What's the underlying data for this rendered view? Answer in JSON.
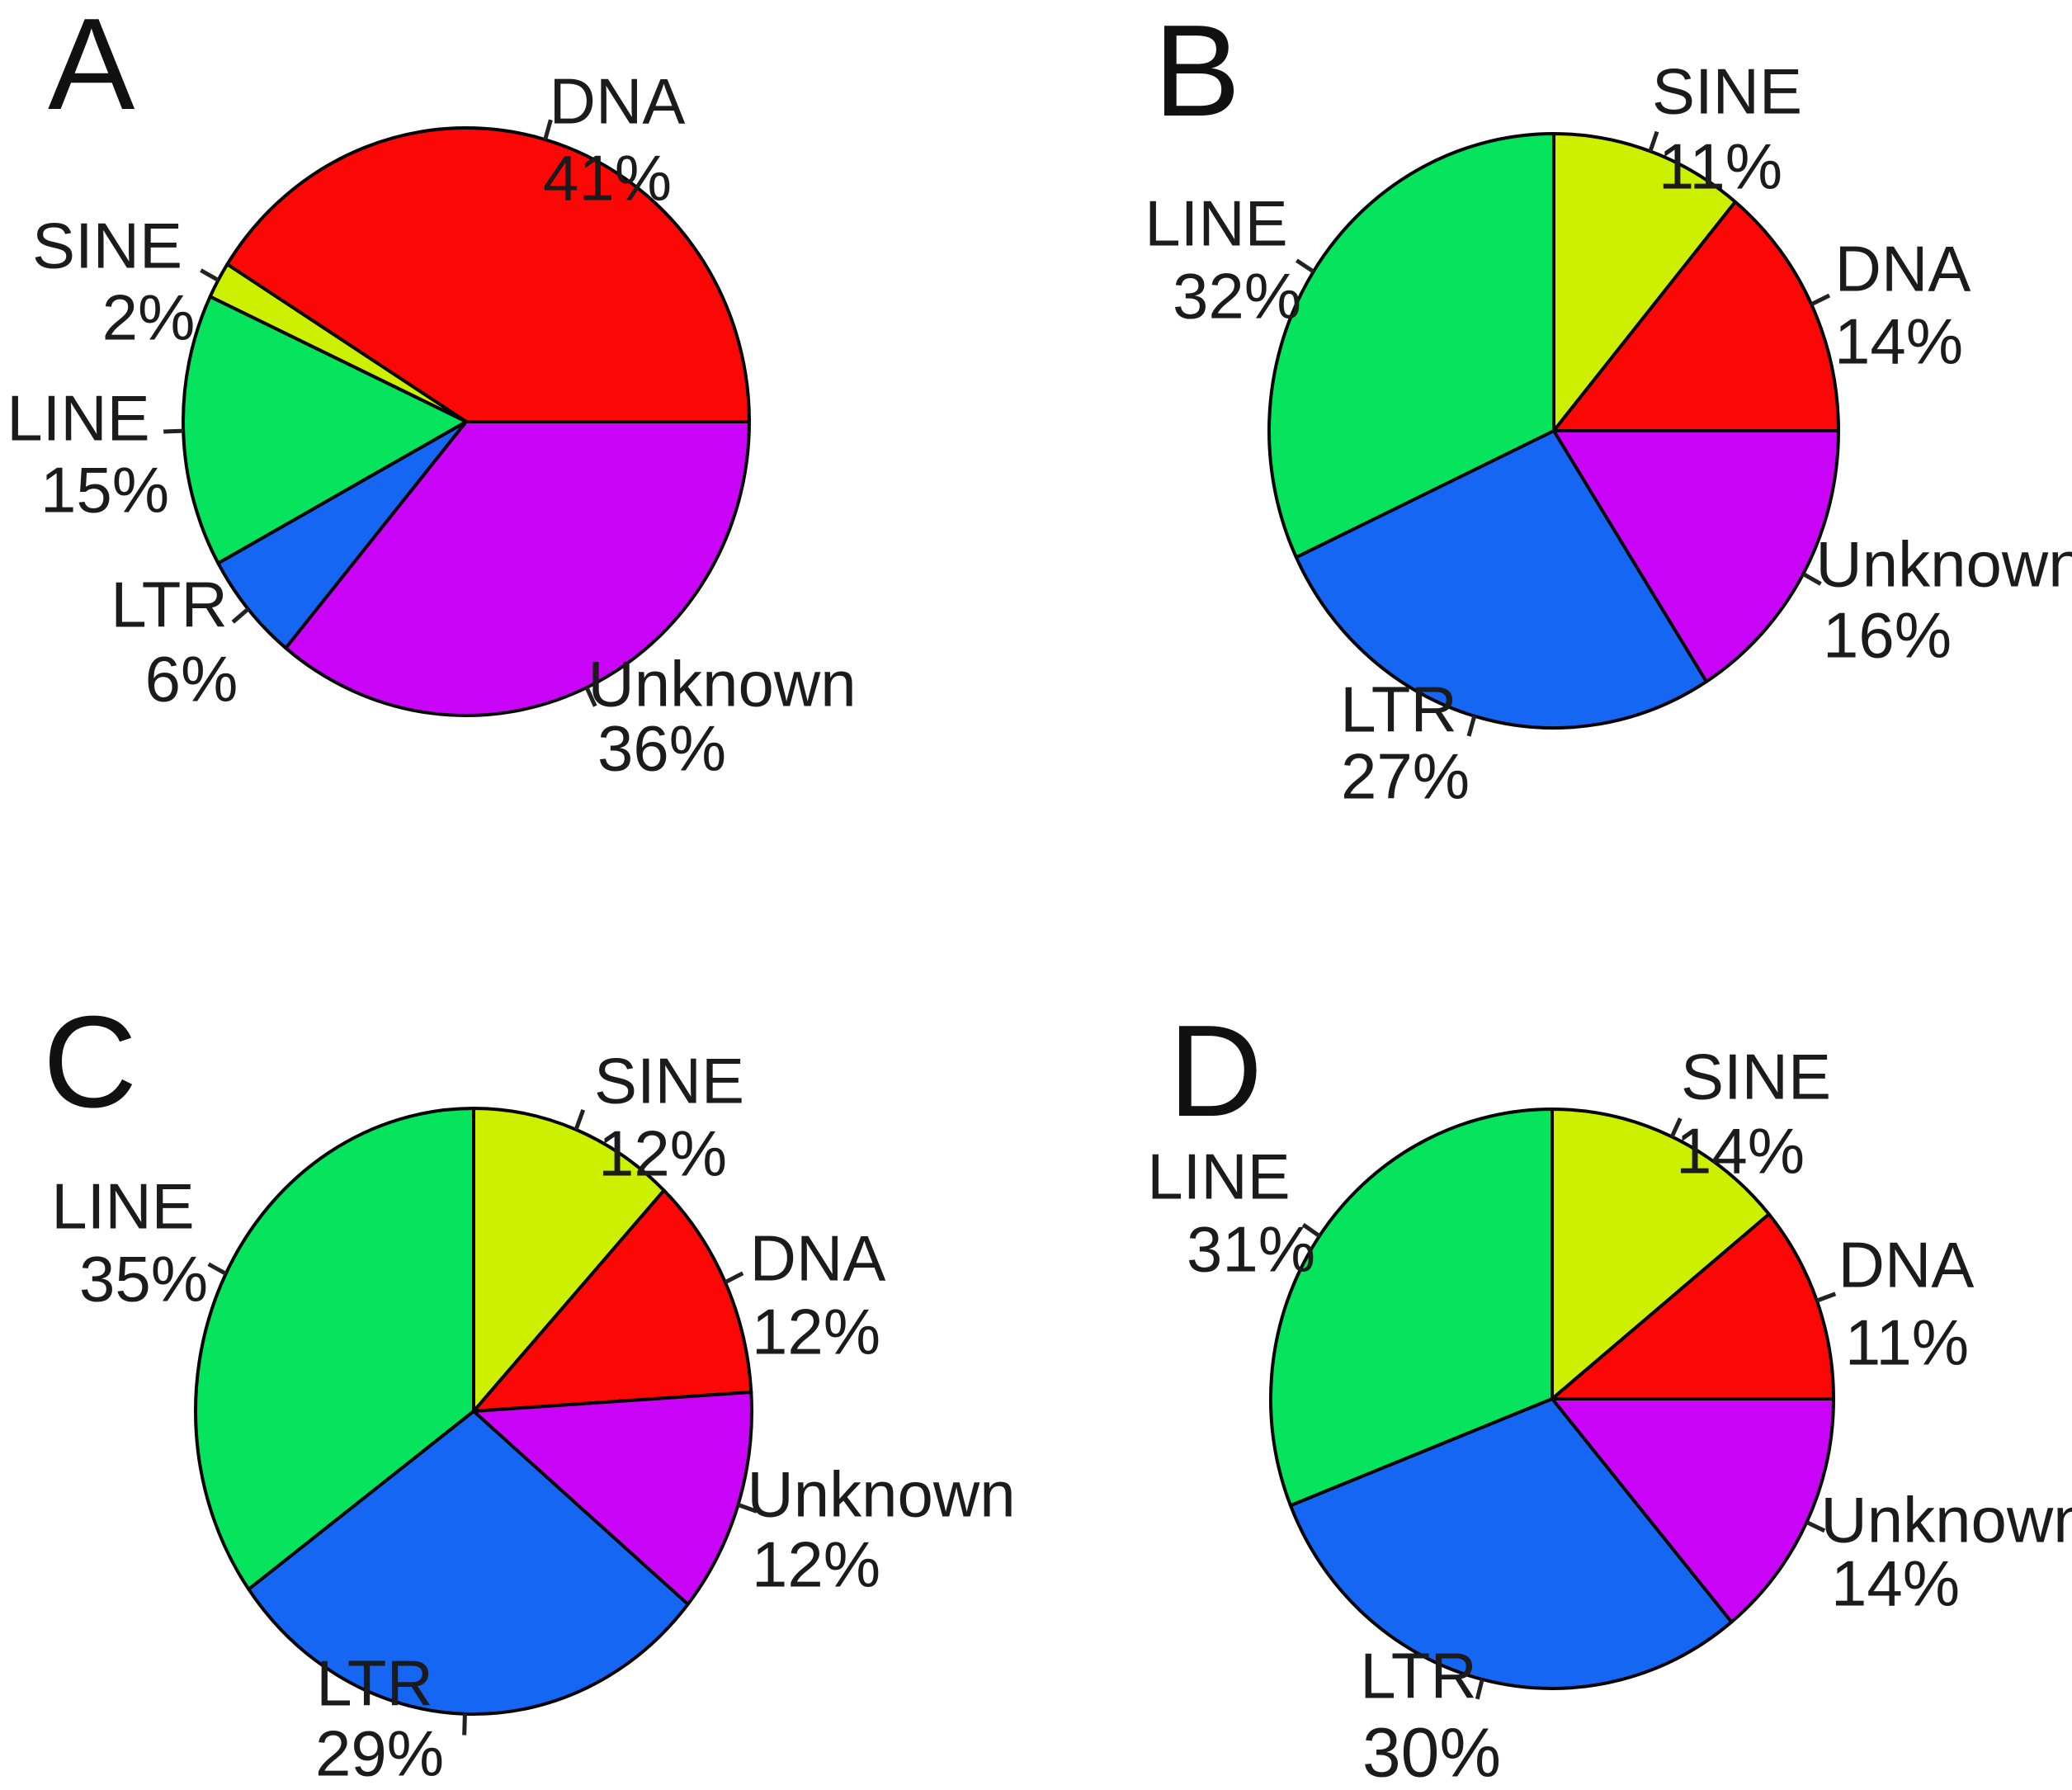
{
  "background": "#ffffff",
  "chart_data": [
    {
      "type": "pie",
      "title": "A",
      "start_angle_deg": 0,
      "direction": "ccw",
      "grid": false,
      "legend_position": "outside-slice-labels",
      "categories": [
        "DNA",
        "SINE",
        "LINE",
        "LTR",
        "Unknown"
      ],
      "values": [
        41,
        2,
        15,
        6,
        36
      ],
      "slices": [
        {
          "name": "DNA",
          "value": 41,
          "label": "41%",
          "color": "#fb0806"
        },
        {
          "name": "SINE",
          "value": 2,
          "label": "2%",
          "color": "#ccf000"
        },
        {
          "name": "LINE",
          "value": 15,
          "label": "15%",
          "color": "#06e35c"
        },
        {
          "name": "LTR",
          "value": 6,
          "label": "6%",
          "color": "#1566f2"
        },
        {
          "name": "Unknown",
          "value": 36,
          "label": "36%",
          "color": "#ca04f8"
        }
      ]
    },
    {
      "type": "pie",
      "title": "B",
      "start_angle_deg": 90,
      "direction": "cw",
      "grid": false,
      "legend_position": "outside-slice-labels",
      "categories": [
        "SINE",
        "DNA",
        "Unknown",
        "LTR",
        "LINE"
      ],
      "values": [
        11,
        14,
        16,
        27,
        32
      ],
      "slices": [
        {
          "name": "SINE",
          "value": 11,
          "label": "11%",
          "color": "#ccf000"
        },
        {
          "name": "DNA",
          "value": 14,
          "label": "14%",
          "color": "#fb0806"
        },
        {
          "name": "Unknown",
          "value": 16,
          "label": "16%",
          "color": "#ca04f8"
        },
        {
          "name": "LTR",
          "value": 27,
          "label": "27%",
          "color": "#1566f2"
        },
        {
          "name": "LINE",
          "value": 32,
          "label": "32%",
          "color": "#06e35c"
        }
      ]
    },
    {
      "type": "pie",
      "title": "C",
      "start_angle_deg": 90,
      "direction": "cw",
      "grid": false,
      "legend_position": "outside-slice-labels",
      "categories": [
        "SINE",
        "DNA",
        "Unknown",
        "LTR",
        "LINE"
      ],
      "values": [
        12,
        12,
        12,
        29,
        35
      ],
      "slices": [
        {
          "name": "SINE",
          "value": 12,
          "label": "12%",
          "color": "#ccf000"
        },
        {
          "name": "DNA",
          "value": 12,
          "label": "12%",
          "color": "#fb0806"
        },
        {
          "name": "Unknown",
          "value": 12,
          "label": "12%",
          "color": "#ca04f8"
        },
        {
          "name": "LTR",
          "value": 29,
          "label": "29%",
          "color": "#1566f2"
        },
        {
          "name": "LINE",
          "value": 35,
          "label": "35%",
          "color": "#06e35c"
        }
      ]
    },
    {
      "type": "pie",
      "title": "D",
      "start_angle_deg": 90,
      "direction": "cw",
      "grid": false,
      "legend_position": "outside-slice-labels",
      "categories": [
        "SINE",
        "DNA",
        "Unknown",
        "LTR",
        "LINE"
      ],
      "values": [
        14,
        11,
        14,
        30,
        31
      ],
      "slices": [
        {
          "name": "SINE",
          "value": 14,
          "label": "14%",
          "color": "#ccf000"
        },
        {
          "name": "DNA",
          "value": 11,
          "label": "11%",
          "color": "#fb0806"
        },
        {
          "name": "Unknown",
          "value": 14,
          "label": "14%",
          "color": "#ca04f8"
        },
        {
          "name": "LTR",
          "value": 30,
          "label": "30%",
          "color": "#1566f2"
        },
        {
          "name": "LINE",
          "value": 31,
          "label": "31%",
          "color": "#06e35c"
        }
      ]
    }
  ]
}
